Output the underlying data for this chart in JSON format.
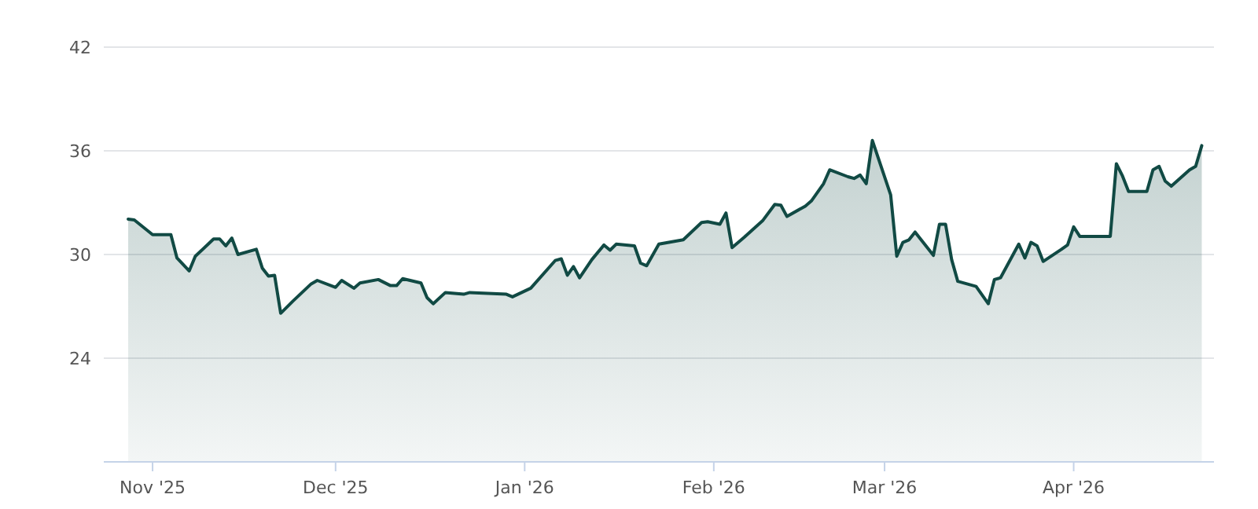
{
  "chart_data": {
    "type": "area",
    "x": [
      "2025-10-28",
      "2025-10-29",
      "2025-11-01",
      "2025-11-04",
      "2025-11-05",
      "2025-11-07",
      "2025-11-08",
      "2025-11-11",
      "2025-11-12",
      "2025-11-13",
      "2025-11-14",
      "2025-11-15",
      "2025-11-18",
      "2025-11-19",
      "2025-11-20",
      "2025-11-21",
      "2025-11-22",
      "2025-11-24",
      "2025-11-27",
      "2025-11-28",
      "2025-12-01",
      "2025-12-02",
      "2025-12-04",
      "2025-12-05",
      "2025-12-08",
      "2025-12-10",
      "2025-12-11",
      "2025-12-12",
      "2025-12-15",
      "2025-12-16",
      "2025-12-17",
      "2025-12-19",
      "2025-12-22",
      "2025-12-23",
      "2025-12-26",
      "2025-12-29",
      "2025-12-30",
      "2026-01-02",
      "2026-01-06",
      "2026-01-07",
      "2026-01-08",
      "2026-01-09",
      "2026-01-10",
      "2026-01-12",
      "2026-01-14",
      "2026-01-15",
      "2026-01-16",
      "2026-01-19",
      "2026-01-20",
      "2026-01-21",
      "2026-01-23",
      "2026-01-27",
      "2026-01-30",
      "2026-01-31",
      "2026-02-02",
      "2026-02-03",
      "2026-02-04",
      "2026-02-06",
      "2026-02-09",
      "2026-02-11",
      "2026-02-12",
      "2026-02-13",
      "2026-02-16",
      "2026-02-17",
      "2026-02-19",
      "2026-02-20",
      "2026-02-23",
      "2026-02-24",
      "2026-02-25",
      "2026-02-26",
      "2026-02-27",
      "2026-03-02",
      "2026-03-03",
      "2026-03-04",
      "2026-03-05",
      "2026-03-06",
      "2026-03-09",
      "2026-03-10",
      "2026-03-11",
      "2026-03-12",
      "2026-03-13",
      "2026-03-16",
      "2026-03-18",
      "2026-03-19",
      "2026-03-20",
      "2026-03-23",
      "2026-03-24",
      "2026-03-25",
      "2026-03-26",
      "2026-03-27",
      "2026-03-30",
      "2026-03-31",
      "2026-04-01",
      "2026-04-02",
      "2026-04-07",
      "2026-04-08",
      "2026-04-09",
      "2026-04-10",
      "2026-04-13",
      "2026-04-14",
      "2026-04-15",
      "2026-04-16",
      "2026-04-17",
      "2026-04-20",
      "2026-04-21",
      "2026-04-22"
    ],
    "series": [
      {
        "color": "#114a44",
        "values": [
          32.05,
          32.0,
          31.15,
          31.15,
          29.8,
          29.05,
          29.9,
          30.9,
          30.9,
          30.5,
          30.95,
          30.0,
          30.3,
          29.2,
          28.75,
          28.8,
          26.6,
          27.3,
          28.3,
          28.5,
          28.1,
          28.5,
          28.05,
          28.35,
          28.55,
          28.2,
          28.2,
          28.6,
          28.35,
          27.5,
          27.15,
          27.8,
          27.7,
          27.8,
          27.75,
          27.7,
          27.55,
          28.05,
          29.65,
          29.75,
          28.8,
          29.3,
          28.65,
          29.7,
          30.55,
          30.25,
          30.6,
          30.5,
          29.5,
          29.35,
          30.6,
          30.85,
          31.85,
          31.9,
          31.75,
          32.4,
          30.4,
          31.0,
          31.95,
          32.9,
          32.85,
          32.2,
          32.8,
          33.1,
          34.1,
          34.9,
          34.5,
          34.4,
          34.6,
          34.1,
          36.6,
          33.45,
          29.9,
          30.7,
          30.85,
          31.3,
          29.95,
          31.75,
          31.75,
          29.7,
          28.45,
          28.15,
          27.15,
          28.55,
          28.65,
          30.6,
          29.8,
          30.7,
          30.5,
          29.6,
          30.3,
          30.55,
          31.6,
          31.05,
          31.05,
          35.25,
          34.55,
          33.65,
          33.65,
          34.9,
          35.1,
          34.25,
          33.95,
          34.9,
          35.1,
          36.3
        ]
      }
    ],
    "xlim": [
      "2025-10-24",
      "2026-04-24"
    ],
    "xticks": [
      {
        "value": "2025-11-01",
        "label": "Nov '25"
      },
      {
        "value": "2025-12-01",
        "label": "Dec '25"
      },
      {
        "value": "2026-01-01",
        "label": "Jan '26"
      },
      {
        "value": "2026-02-01",
        "label": "Feb '26"
      },
      {
        "value": "2026-03-01",
        "label": "Mar '26"
      },
      {
        "value": "2026-04-01",
        "label": "Apr '26"
      }
    ],
    "ylim": [
      18,
      42
    ],
    "yticks": [
      24,
      30,
      36,
      42
    ],
    "grid": "y"
  }
}
